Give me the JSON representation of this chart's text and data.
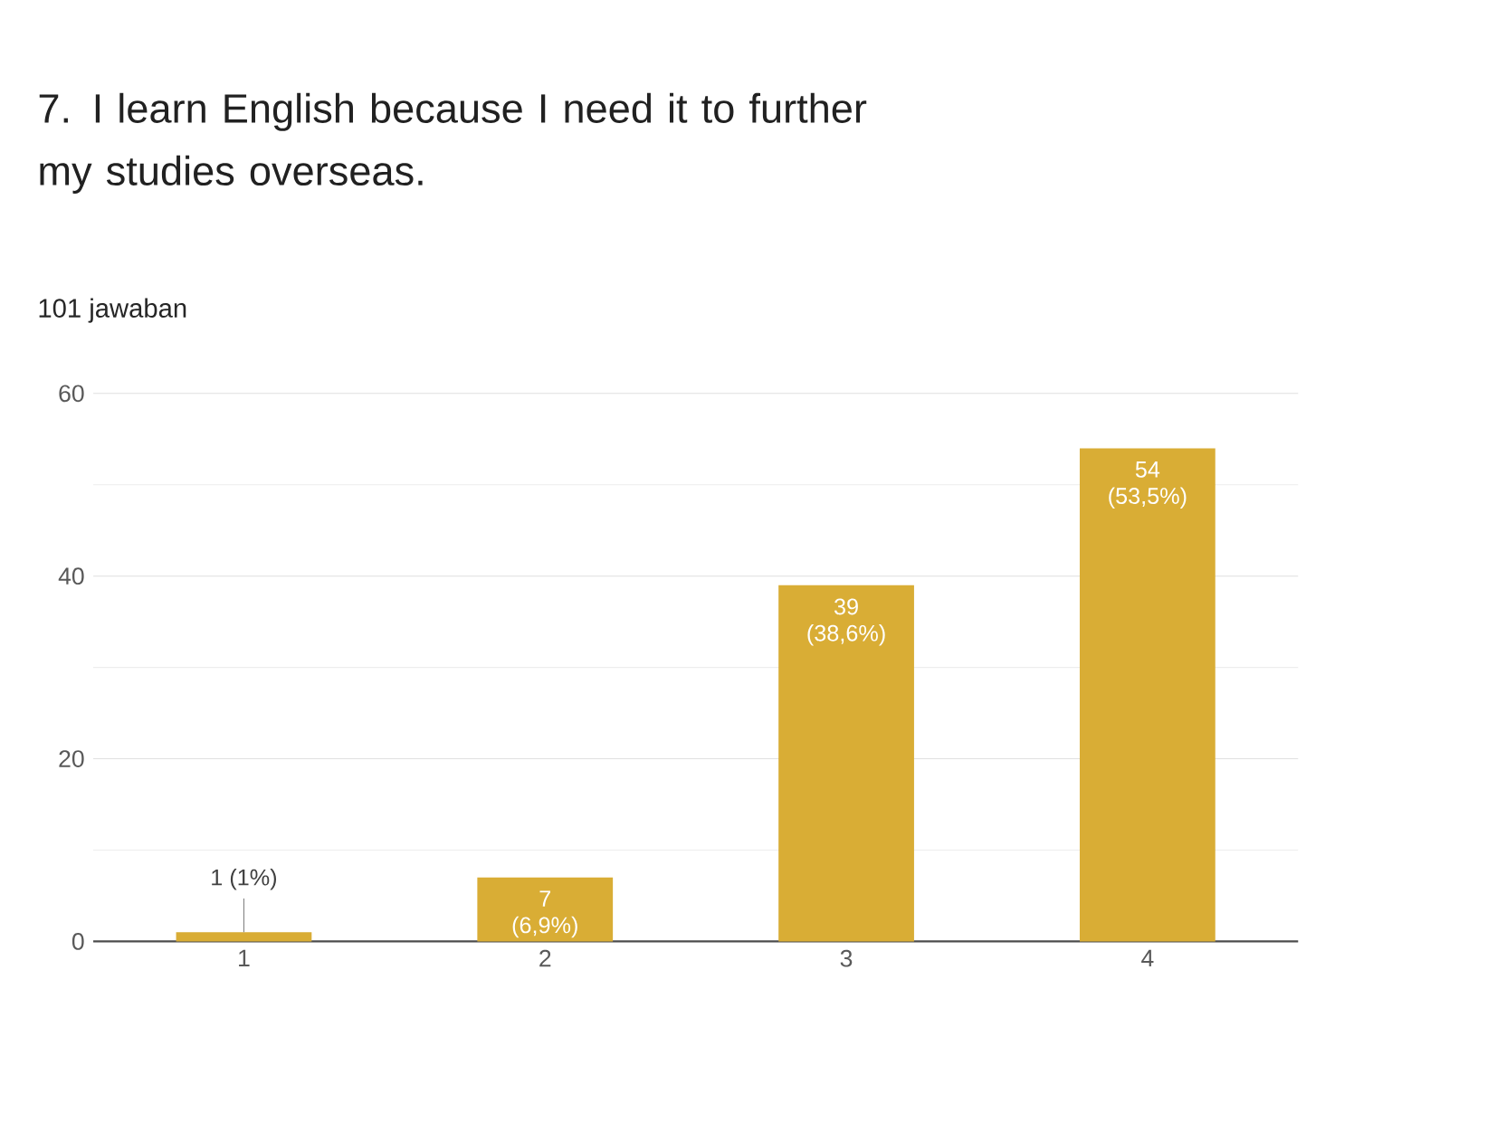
{
  "chart_data": {
    "type": "bar",
    "title": "7. I learn English because I need it to further my studies overseas.",
    "subtitle": "101 jawaban",
    "categories": [
      "1",
      "2",
      "3",
      "4"
    ],
    "values": [
      1,
      7,
      39,
      54
    ],
    "value_labels": [
      "1 (1%)",
      "7 (6,9%)",
      "39 (38,6%)",
      "54 (53,5%)"
    ],
    "color": "#d9ad35",
    "ylim": [
      0,
      60
    ],
    "yticks": [
      0,
      20,
      40,
      60
    ],
    "grid": "y"
  }
}
